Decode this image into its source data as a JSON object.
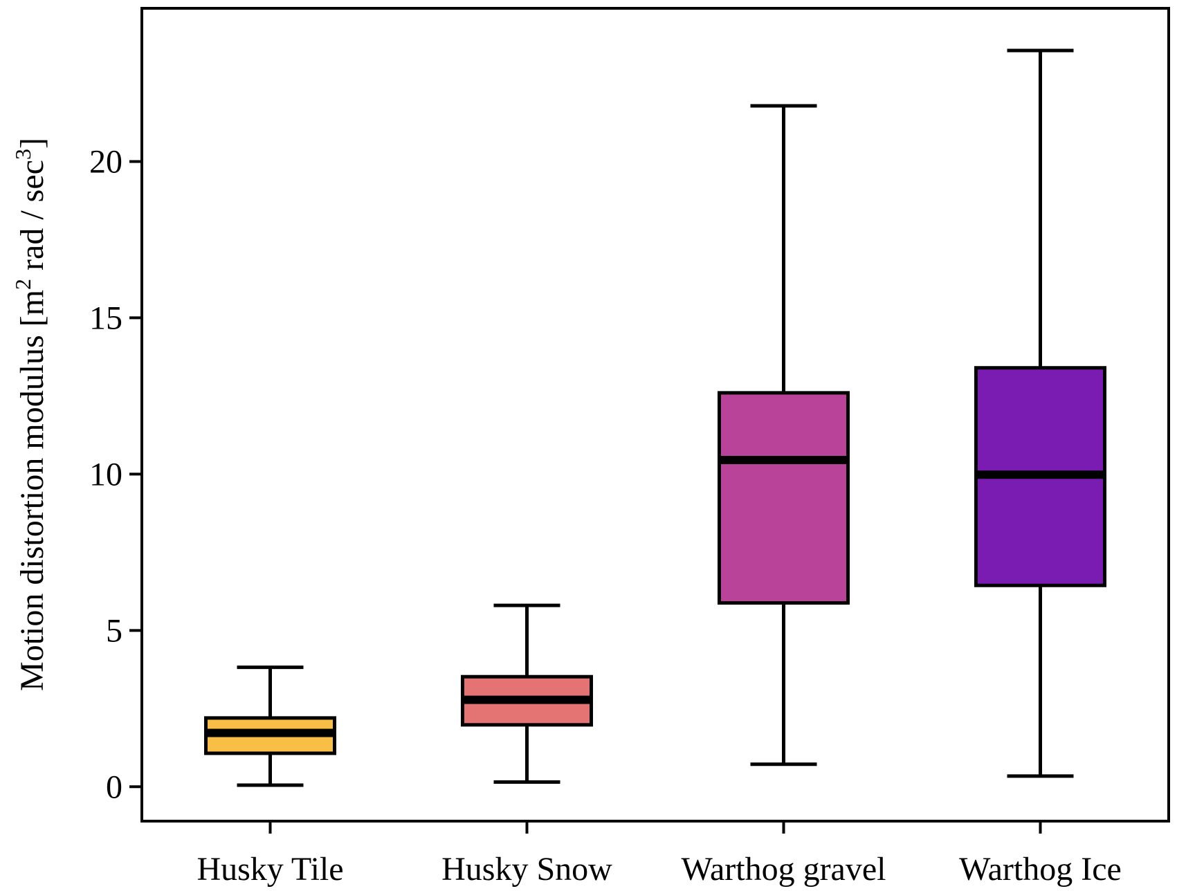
{
  "chart_data": {
    "type": "box",
    "title": "",
    "xlabel": "",
    "ylabel": {
      "main": "Motion distortion modulus [m",
      "sup1": "2",
      "mid": " rad / sec",
      "sup2": "3",
      "end": "]"
    },
    "ylim": [
      -1.1,
      24.9
    ],
    "yticks": [
      0,
      5,
      10,
      15,
      20
    ],
    "grid": false,
    "legend": "none",
    "categories": [
      "Husky Tile",
      "Husky Snow",
      "Warthog gravel",
      "Warthog Ice"
    ],
    "boxes": [
      {
        "label": "Husky Tile",
        "whisker_low": 0.05,
        "q1": 1.07,
        "median": 1.72,
        "q3": 2.2,
        "whisker_high": 3.82,
        "color": "#F9BE45"
      },
      {
        "label": "Husky Snow",
        "whisker_low": 0.15,
        "q1": 1.98,
        "median": 2.78,
        "q3": 3.52,
        "whisker_high": 5.8,
        "color": "#E37473"
      },
      {
        "label": "Warthog gravel",
        "whisker_low": 0.72,
        "q1": 5.88,
        "median": 10.45,
        "q3": 12.6,
        "whisker_high": 21.78,
        "color": "#B84399"
      },
      {
        "label": "Warthog Ice",
        "whisker_low": 0.34,
        "q1": 6.44,
        "median": 9.98,
        "q3": 13.4,
        "whisker_high": 23.55,
        "color": "#7A1BB2"
      }
    ]
  }
}
